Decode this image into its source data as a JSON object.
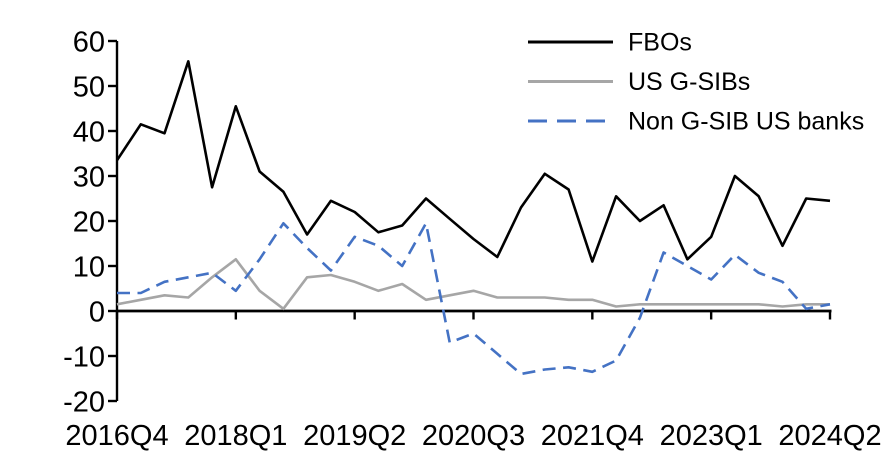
{
  "chart_data": {
    "type": "line",
    "title": "",
    "background": "#FFFFFF",
    "grid": false,
    "legend_position": "top-right",
    "x_axis": {
      "tick_labels": [
        "2016Q4",
        "2018Q1",
        "2019Q2",
        "2020Q3",
        "2021Q4",
        "2023Q1",
        "2024Q2"
      ],
      "points_per_tick": 5,
      "n_points": 31,
      "frequency": "quarterly"
    },
    "y_axis": {
      "min": -20,
      "max": 60,
      "step": 10,
      "tick_labels": [
        "60",
        "50",
        "40",
        "30",
        "20",
        "10",
        "0",
        "-10",
        "-20"
      ]
    },
    "series": [
      {
        "name": "FBOs",
        "color": "#000000",
        "style": "solid",
        "values": [
          33.5,
          41.5,
          39.5,
          55.5,
          27.5,
          45.5,
          31,
          26.5,
          17,
          24.5,
          22,
          17.5,
          19,
          25,
          20.5,
          16,
          12,
          23,
          30.5,
          27,
          11,
          25.5,
          20,
          23.5,
          11.5,
          16.5,
          30,
          25.5,
          14.5,
          25,
          24.5
        ]
      },
      {
        "name": "US G-SIBs",
        "color": "#A6A6A6",
        "style": "solid",
        "values": [
          1.5,
          2.5,
          3.5,
          3,
          7.5,
          11.5,
          4.5,
          0.5,
          7.5,
          8,
          6.5,
          4.5,
          6,
          2.5,
          3.5,
          4.5,
          3,
          3,
          3,
          2.5,
          2.5,
          1,
          1.5,
          1.5,
          1.5,
          1.5,
          1.5,
          1.5,
          1,
          1.5,
          1.5
        ]
      },
      {
        "name": "Non G-SIB US banks",
        "color": "#4472C4",
        "style": "dashed",
        "values": [
          4,
          4,
          6.5,
          7.5,
          8.5,
          4.5,
          11.5,
          19.5,
          14,
          9,
          16.5,
          14.5,
          10,
          19.5,
          -7,
          -5,
          -9.5,
          -14,
          -13,
          -12.5,
          -13.5,
          -11,
          -1.5,
          13,
          10,
          7,
          12.5,
          8.5,
          6.5,
          0.5,
          1.5
        ]
      }
    ]
  }
}
